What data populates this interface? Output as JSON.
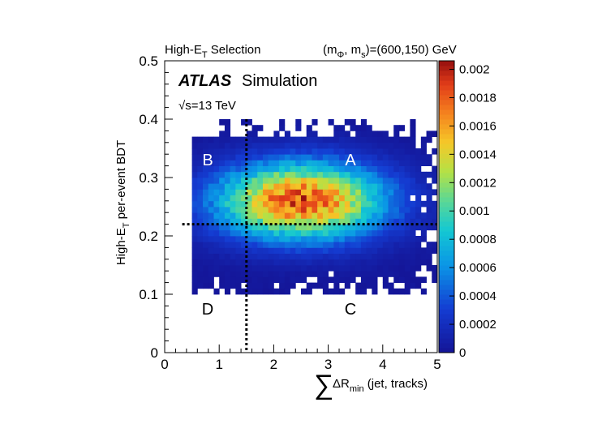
{
  "chart_data": {
    "type": "heatmap",
    "top_left_label": {
      "prefix": "High-E",
      "sub": "T",
      "suffix": " Selection"
    },
    "top_right_label": {
      "open": "(m",
      "sub1": "Φ",
      "mid": ", m",
      "sub2": "s",
      "close": ")=(600,150) GeV"
    },
    "atlas": "ATLAS",
    "simulation": "Simulation",
    "energy": {
      "root": "√",
      "text": "s=13 TeV"
    },
    "ylabel": {
      "prefix": "High-E",
      "sub": "T",
      "suffix": " per-event BDT"
    },
    "xlabel": {
      "sum": "∑",
      "delta": "ΔR",
      "sub": "min",
      "suffix": " (jet, tracks)"
    },
    "xlim": [
      0,
      5
    ],
    "ylim": [
      0,
      0.5
    ],
    "x_ticks": [
      "0",
      "1",
      "2",
      "3",
      "4",
      "5"
    ],
    "y_ticks": [
      "0",
      "0.1",
      "0.2",
      "0.3",
      "0.4",
      "0.5"
    ],
    "z_ticks": [
      "0",
      "0.0002",
      "0.0004",
      "0.0006",
      "0.0008",
      "0.001",
      "0.0012",
      "0.0014",
      "0.0016",
      "0.0018",
      "0.002"
    ],
    "zlim": [
      0,
      0.00206
    ],
    "cut_x": 1.5,
    "cut_y": 0.22,
    "regions": [
      "A",
      "B",
      "C",
      "D"
    ],
    "distribution": {
      "x_range": [
        0.5,
        5.0
      ],
      "y_range": [
        0.1,
        0.4
      ],
      "peak_x": 2.5,
      "peak_y": 0.26,
      "peak_value": 0.0019,
      "bins_x": 45,
      "bins_y": 30
    }
  }
}
